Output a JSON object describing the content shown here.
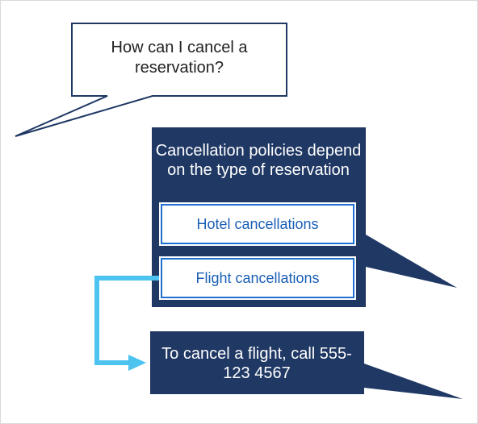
{
  "user_message": {
    "text": "How can I cancel a reservation?"
  },
  "bot_reply": {
    "text": "Cancellation policies depend on the type of reservation",
    "options": [
      {
        "label": "Hotel cancellations"
      },
      {
        "label": "Flight cancellations"
      }
    ]
  },
  "follow_up_reply": {
    "text": "To cancel a flight, call 555-123 4567"
  },
  "colors": {
    "user_bubble_fill": "#ffffff",
    "user_bubble_stroke": "#1f3864",
    "bot_bubble_fill": "#203864",
    "button_border": "#1f6fd1",
    "button_text": "#1a5fb4",
    "connector_arrow": "#4dc3ef"
  }
}
